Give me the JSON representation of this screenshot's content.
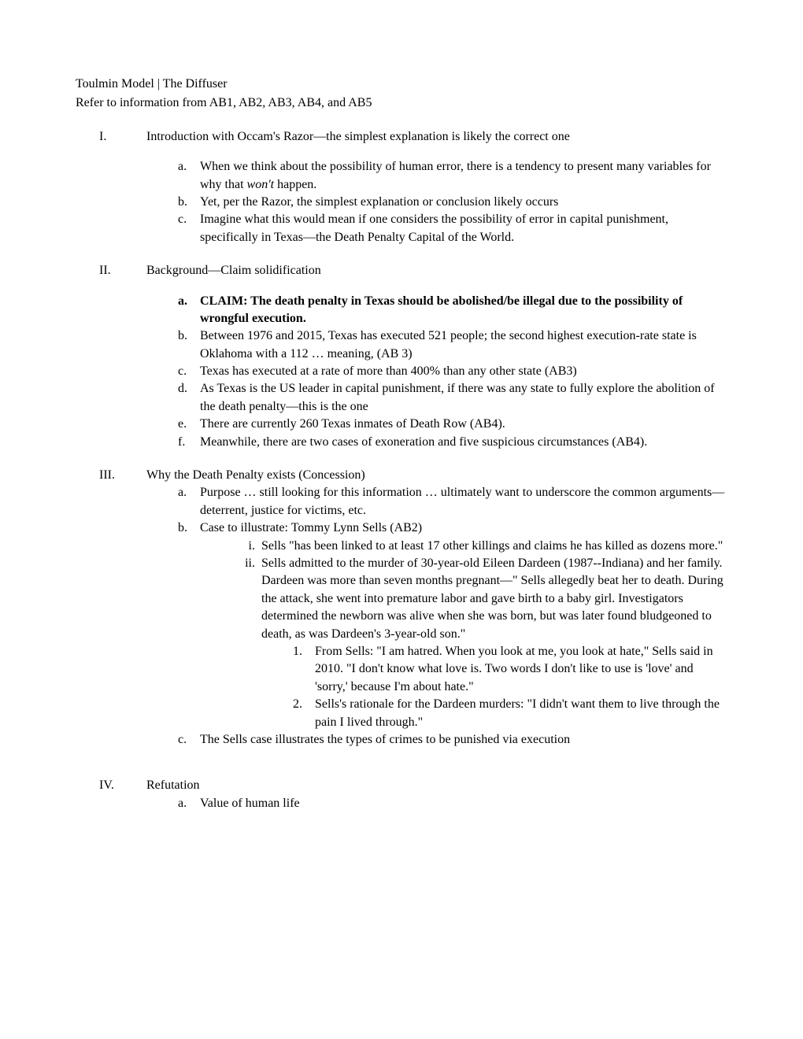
{
  "header": {
    "line1": "Toulmin Model | The Diffuser",
    "line2": "Refer to information from AB1, AB2, AB3, AB4, and AB5"
  },
  "sections": {
    "I": {
      "numeral": "I.",
      "title": "Introduction with Occam's Razor—the simplest explanation is likely the correct one",
      "items": {
        "a": {
          "letter": "a.",
          "text_pre": "When we think about the possibility of human error, there is a tendency to present many variables for why that ",
          "text_italic": "won't",
          "text_post": " happen."
        },
        "b": {
          "letter": "b.",
          "text": "Yet, per the Razor, the simplest explanation or conclusion likely occurs"
        },
        "c": {
          "letter": "c.",
          "text": "Imagine what this would mean if one considers the possibility of error in capital punishment, specifically in Texas—the Death Penalty Capital of the World."
        }
      }
    },
    "II": {
      "numeral": "II.",
      "title": "Background—Claim solidification",
      "items": {
        "a": {
          "letter": "a.",
          "text": "CLAIM: The death penalty in Texas should be abolished/be illegal due to the possibility of wrongful execution."
        },
        "b": {
          "letter": "b.",
          "text": "Between 1976 and 2015, Texas has executed 521 people; the second highest execution-rate state is Oklahoma with a 112 … meaning, (AB 3)"
        },
        "c": {
          "letter": "c.",
          "text": "Texas has executed at a rate of more than 400% than any other state (AB3)"
        },
        "d": {
          "letter": "d.",
          "text": "As Texas is the US leader in capital punishment, if there was any state to fully explore the abolition of the death penalty—this is the one"
        },
        "e": {
          "letter": "e.",
          "text": "There are currently 260 Texas inmates of Death Row (AB4)."
        },
        "f": {
          "letter": "f.",
          "text": "Meanwhile, there are two cases of exoneration and five suspicious circumstances (AB4)."
        }
      }
    },
    "III": {
      "numeral": "III.",
      "title": "Why the Death Penalty exists (Concession)",
      "items": {
        "a": {
          "letter": "a.",
          "text": "Purpose … still looking for this information … ultimately want to underscore the common arguments—deterrent, justice for victims, etc."
        },
        "b": {
          "letter": "b.",
          "text": "Case to illustrate: Tommy Lynn Sells (AB2)",
          "sub": {
            "i": {
              "numeral": "i.",
              "text_pre": "Sells ",
              "text_post": "\"has been linked to at least 17 other killings and claims he has killed as dozens more.\""
            },
            "ii": {
              "numeral": "ii.",
              "text_pre": "Sells admitted to the ",
              "text_post": "murder of 30-year-old Eileen Dardeen (1987--Indiana) and her family. Dardeen was more than seven months pregnant—\" Sells allegedly beat her to death. During the attack, she went into premature labor and gave birth to a baby girl. Investigators determined the newborn was alive when she was born, but was later found bludgeoned to death, as was Dardeen's 3-year-old son.\"",
              "nums": {
                "1": {
                  "num": "1.",
                  "text_pre": "From Sells: ",
                  "text_post": "\"I am hatred. When you look at me, you look at hate,\" Sells said in 2010. \"I don't know what love is. Two words I don't like to use is 'love' and 'sorry,' because I'm about hate.\""
                },
                "2": {
                  "num": "2.",
                  "text": "Sells's rationale for the Dardeen murders: \"I didn't want them to live through the pain I lived through.\""
                }
              }
            }
          }
        },
        "c": {
          "letter": "c.",
          "text": "The Sells case illustrates the types of crimes to be punished via execution"
        }
      }
    },
    "IV": {
      "numeral": "IV.",
      "title": "Refutation",
      "items": {
        "a": {
          "letter": "a.",
          "text": "Value of human life"
        }
      }
    }
  }
}
